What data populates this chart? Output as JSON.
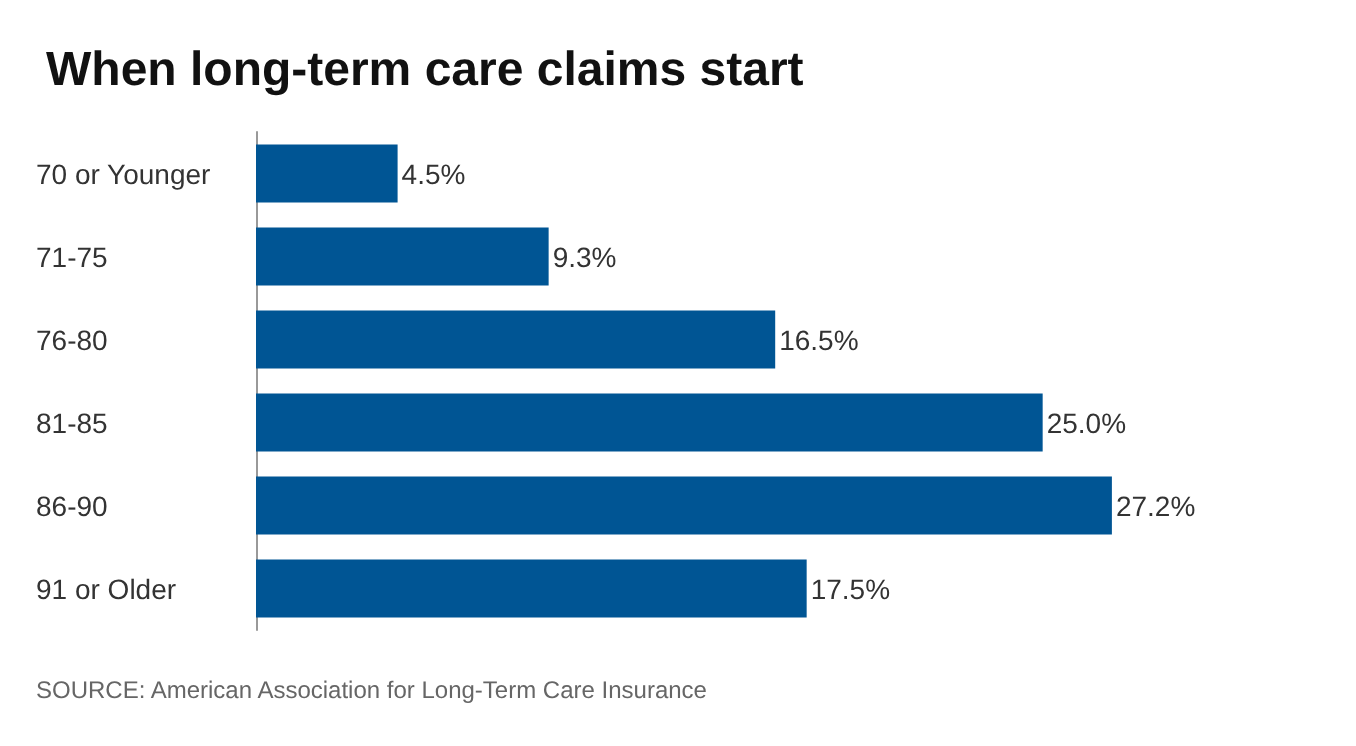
{
  "chart_data": {
    "type": "bar",
    "orientation": "horizontal",
    "title": "When long-term care claims start",
    "categories": [
      "70 or Younger",
      "71-75",
      "76-80",
      "81-85",
      "86-90",
      "91 or Older"
    ],
    "values": [
      4.5,
      9.3,
      16.5,
      25.0,
      27.2,
      17.5
    ],
    "value_labels": [
      "4.5%",
      "9.3%",
      "16.5%",
      "25.0%",
      "27.2%",
      "17.5%"
    ],
    "color": "#005594",
    "grid": false,
    "annotations": [
      "SOURCE: American Association for Long-Term Care Insurance"
    ]
  }
}
